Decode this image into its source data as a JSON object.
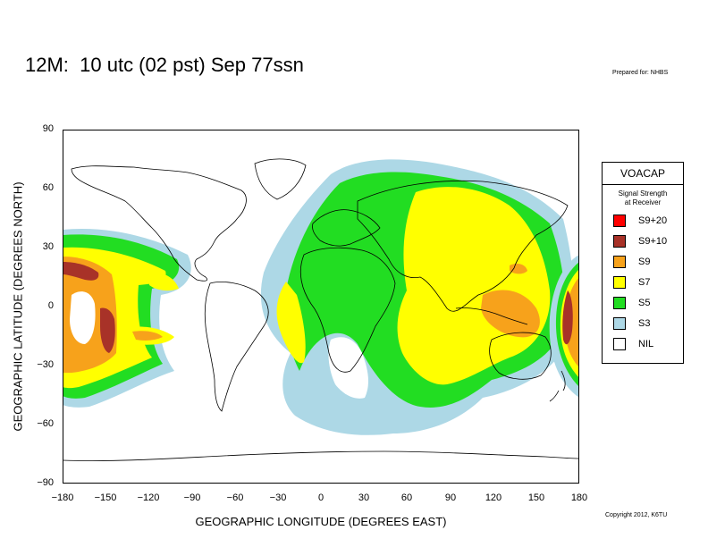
{
  "title": "12M:  10 utc (02 pst) Sep 77ssn",
  "prepared_for": "Prepared for: NHBS",
  "copyright": "Copyright 2012, K6TU",
  "x_axis": {
    "label": "GEOGRAPHIC LONGITUDE (DEGREES EAST)",
    "ticks": [
      "−180",
      "−150",
      "−120",
      "−90",
      "−60",
      "−30",
      "0",
      "30",
      "60",
      "90",
      "120",
      "150",
      "180"
    ],
    "range": [
      -180,
      180
    ]
  },
  "y_axis": {
    "label": "GEOGRAPHIC LATITUDE (DEGREES NORTH)",
    "ticks": [
      "90",
      "60",
      "30",
      "0",
      "−30",
      "−60",
      "−90"
    ],
    "range": [
      -90,
      90
    ]
  },
  "legend": {
    "title": "VOACAP",
    "subtitle_line1": "Signal Strength",
    "subtitle_line2": "at Receiver",
    "items": [
      {
        "label": "S9+20",
        "color": "#ff0000"
      },
      {
        "label": "S9+10",
        "color": "#a83228"
      },
      {
        "label": "S9",
        "color": "#f7a21b"
      },
      {
        "label": "S7",
        "color": "#ffff00"
      },
      {
        "label": "S5",
        "color": "#22dd22"
      },
      {
        "label": "S3",
        "color": "#add8e6"
      },
      {
        "label": "NIL",
        "color": "#ffffff"
      }
    ]
  },
  "map_colors": {
    "ocean": "#ffffff",
    "coastline": "#000000"
  }
}
